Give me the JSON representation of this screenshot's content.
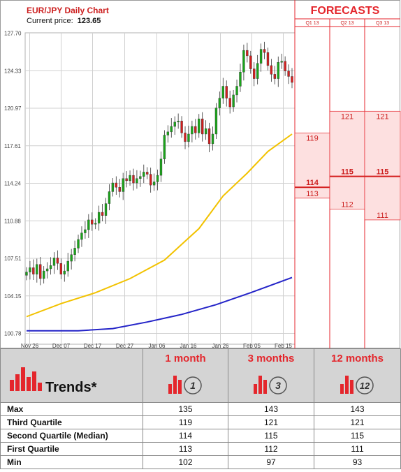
{
  "chart_title": "EUR/JPY Daily Chart",
  "current_price_label": "Current price:",
  "current_price_value": "123.65",
  "forecasts_title": "FORECASTS",
  "colors": {
    "accent_red": "#e4262c",
    "bull_candle": "#1aa51a",
    "bear_candle": "#d41e1e",
    "ma_short": "#f2c200",
    "ma_long": "#2424c8",
    "forecast_fill": "#fde0e0"
  },
  "chart_data": {
    "type": "candlestick",
    "title": "EUR/JPY Daily Chart",
    "y_ticks": [
      "127.70",
      "124.33",
      "120.97",
      "117.61",
      "114.24",
      "110.88",
      "107.51",
      "104.15",
      "100.78"
    ],
    "ylim": [
      100.78,
      127.7
    ],
    "x_ticks": [
      "Nov 26",
      "Dec 07",
      "Dec 17",
      "Dec 27",
      "Jan 06",
      "Jan 16",
      "Jan 26",
      "Feb 05",
      "Feb 15"
    ],
    "closes": [
      106.2,
      106.6,
      106.0,
      106.9,
      105.6,
      106.3,
      106.5,
      106.8,
      107.5,
      107.0,
      106.0,
      106.3,
      107.2,
      107.8,
      108.4,
      109.2,
      109.8,
      110.1,
      111.0,
      110.6,
      110.7,
      111.7,
      111.4,
      112.5,
      113.6,
      114.4,
      114.0,
      113.6,
      114.8,
      114.6,
      115.1,
      114.4,
      114.8,
      115.0,
      115.4,
      115.2,
      114.2,
      114.5,
      115.1,
      116.6,
      118.8,
      119.1,
      119.6,
      120.0,
      120.1,
      119.0,
      118.2,
      118.9,
      119.6,
      119.0,
      120.3,
      118.9,
      119.4,
      118.0,
      118.9,
      121.3,
      122.2,
      123.3,
      122.2,
      121.4,
      122.5,
      123.3,
      124.6,
      126.6,
      126.1,
      124.9,
      124.0,
      125.4,
      126.7,
      126.4,
      125.2,
      124.4,
      124.0,
      125.5,
      125.6,
      124.7,
      124.2,
      123.65
    ],
    "ma_short": [
      [
        0,
        102.1
      ],
      [
        10,
        103.3
      ],
      [
        20,
        104.3
      ],
      [
        30,
        105.6
      ],
      [
        40,
        107.3
      ],
      [
        50,
        110.2
      ],
      [
        57,
        113.2
      ],
      [
        64,
        115.3
      ],
      [
        70,
        117.3
      ],
      [
        77,
        118.9
      ]
    ],
    "ma_long": [
      [
        0,
        100.8
      ],
      [
        15,
        100.8
      ],
      [
        25,
        101.0
      ],
      [
        35,
        101.6
      ],
      [
        45,
        102.3
      ],
      [
        55,
        103.2
      ],
      [
        65,
        104.3
      ],
      [
        77,
        105.7
      ]
    ],
    "forecast_columns": [
      "Q1 13",
      "Q2 13",
      "Q3 13"
    ],
    "forecast_ranges": [
      {
        "column": "Q1 13",
        "q3": 119,
        "median": 114,
        "q1": 113
      },
      {
        "column": "Q2 13",
        "q3": 121,
        "median": 115,
        "q1": 112
      },
      {
        "column": "Q3 13",
        "q3": 121,
        "median": 115,
        "q1": 111
      }
    ]
  },
  "trends": {
    "label": "Trends*",
    "periods": [
      {
        "label": "1 month",
        "badge": "1"
      },
      {
        "label": "3 months",
        "badge": "3"
      },
      {
        "label": "12 months",
        "badge": "12"
      }
    ],
    "rows": [
      {
        "label": "Max",
        "values": [
          "135",
          "143",
          "143"
        ]
      },
      {
        "label": "Third Quartile",
        "values": [
          "119",
          "121",
          "121"
        ]
      },
      {
        "label": "Second Quartile (Median)",
        "values": [
          "114",
          "115",
          "115"
        ]
      },
      {
        "label": "First Quartile",
        "values": [
          "113",
          "112",
          "111"
        ]
      },
      {
        "label": "Min",
        "values": [
          "102",
          "97",
          "93"
        ]
      }
    ]
  }
}
